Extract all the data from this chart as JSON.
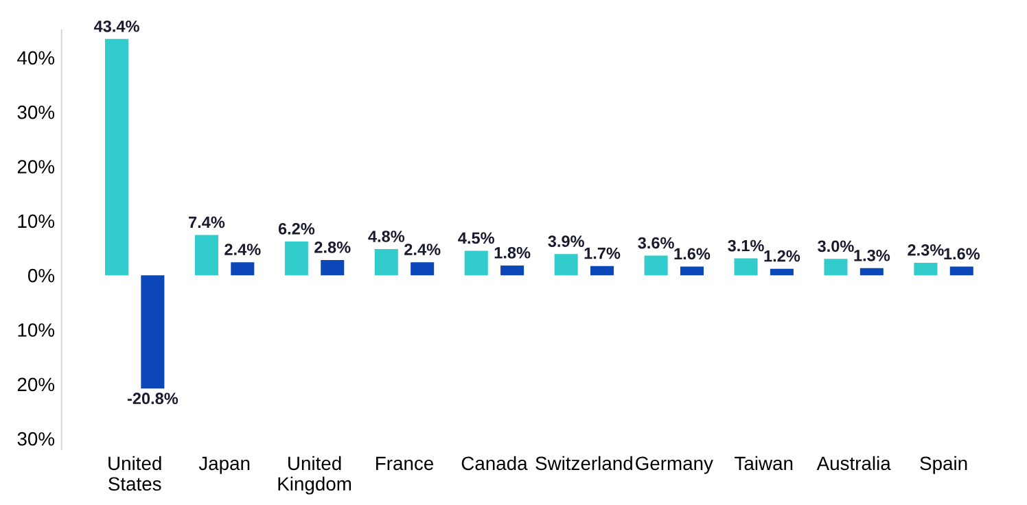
{
  "chart_data": {
    "type": "bar",
    "categories": [
      "United\nStates",
      "Japan",
      "United\nKingdom",
      "France",
      "Canada",
      "Switzerland",
      "Germany",
      "Taiwan",
      "Australia",
      "Spain"
    ],
    "series": [
      {
        "color": "#33cccc",
        "values": [
          43.4,
          7.4,
          6.2,
          4.8,
          4.5,
          3.9,
          3.6,
          3.1,
          3.0,
          2.3
        ],
        "value_labels": [
          "43.4%",
          "7.4%",
          "6.2%",
          "4.8%",
          "4.5%",
          "3.9%",
          "3.6%",
          "3.1%",
          "3.0%",
          "2.3%"
        ]
      },
      {
        "color": "#0b47b8",
        "values": [
          -20.8,
          2.4,
          2.8,
          2.4,
          1.8,
          1.7,
          1.6,
          1.2,
          1.3,
          1.6
        ],
        "value_labels": [
          "-20.8%",
          "2.4%",
          "2.8%",
          "2.4%",
          "1.8%",
          "1.7%",
          "1.6%",
          "1.2%",
          "1.3%",
          "1.6%"
        ]
      }
    ],
    "ylim": [
      -32,
      45
    ],
    "yticks": [
      {
        "value": -30,
        "label": "30%"
      },
      {
        "value": -20,
        "label": "20%"
      },
      {
        "value": -10,
        "label": "10%"
      },
      {
        "value": 0,
        "label": "0%"
      },
      {
        "value": 10,
        "label": "10%"
      },
      {
        "value": 20,
        "label": "20%"
      },
      {
        "value": 30,
        "label": "30%"
      },
      {
        "value": 40,
        "label": "40%"
      }
    ],
    "grid": false,
    "legend": false
  }
}
